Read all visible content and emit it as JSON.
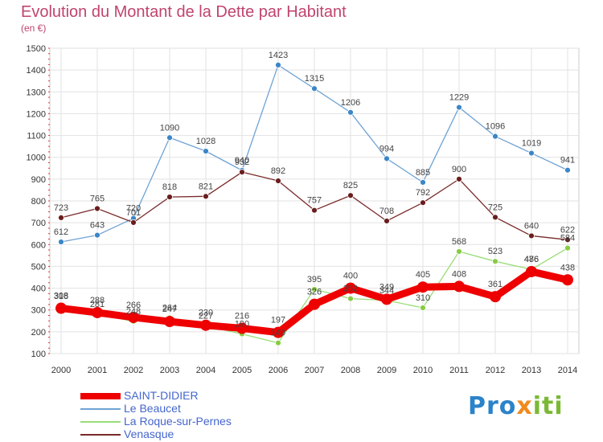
{
  "title": "Evolution du Montant de la Dette par Habitant",
  "subtitle": "(en €)",
  "logo": {
    "part1": "Pro",
    "part2": "x",
    "part3": "iti"
  },
  "chart_data": {
    "type": "line",
    "x": [
      "2000",
      "2001",
      "2002",
      "2003",
      "2004",
      "2005",
      "2006",
      "2007",
      "2008",
      "2009",
      "2010",
      "2011",
      "2012",
      "2013",
      "2014"
    ],
    "ylim": [
      100,
      1500
    ],
    "yticks": [
      100,
      200,
      300,
      400,
      500,
      600,
      700,
      800,
      900,
      1000,
      1100,
      1200,
      1300,
      1400,
      1500
    ],
    "grid": true,
    "legend_position": "bottom-left",
    "series": [
      {
        "name": "SAINT-DIDIER",
        "color": "#ee0000",
        "width": 9,
        "marker_radius": 7,
        "values": [
          308,
          288,
          266,
          247,
          230,
          216,
          197,
          326,
          400,
          349,
          405,
          408,
          361,
          476,
          438
        ],
        "labels": [
          "308",
          "288",
          "266",
          "247",
          "230",
          "216",
          "197",
          "326",
          "400",
          "349",
          "405",
          "408",
          "361",
          "476",
          "438"
        ]
      },
      {
        "name": "Le Beaucet",
        "color": "#6fa3d4",
        "width": 1.3,
        "marker_radius": 3.5,
        "values": [
          612,
          643,
          720,
          1090,
          1028,
          940,
          1423,
          1315,
          1206,
          994,
          885,
          1229,
          1096,
          1019,
          941
        ],
        "labels": [
          "612",
          "643",
          "720",
          "1090",
          "1028",
          "940",
          "1423",
          "1315",
          "1206",
          "994",
          "885",
          "1229",
          "1096",
          "1019",
          "941"
        ]
      },
      {
        "name": "La Roque-sur-Pernes",
        "color": "#99dd77",
        "width": 1.3,
        "marker_radius": 3.5,
        "values": [
          318,
          281,
          248,
          264,
          227,
          190,
          149,
          395,
          352,
          344,
          310,
          568,
          523,
          486,
          584
        ],
        "labels": [
          "318",
          "281",
          "248",
          "264",
          "227",
          "190",
          "149",
          "395",
          "352",
          "344",
          "310",
          "568",
          "523",
          "486",
          "584"
        ]
      },
      {
        "name": "Venasque",
        "color": "#7a2a2a",
        "width": 1.3,
        "marker_radius": 3.5,
        "values": [
          723,
          765,
          701,
          818,
          821,
          932,
          892,
          757,
          825,
          708,
          792,
          900,
          725,
          640,
          622
        ],
        "labels": [
          "723",
          "765",
          "701",
          "818",
          "821",
          "932",
          "892",
          "757",
          "825",
          "708",
          "792",
          "900",
          "725",
          "640",
          "622"
        ]
      }
    ]
  }
}
